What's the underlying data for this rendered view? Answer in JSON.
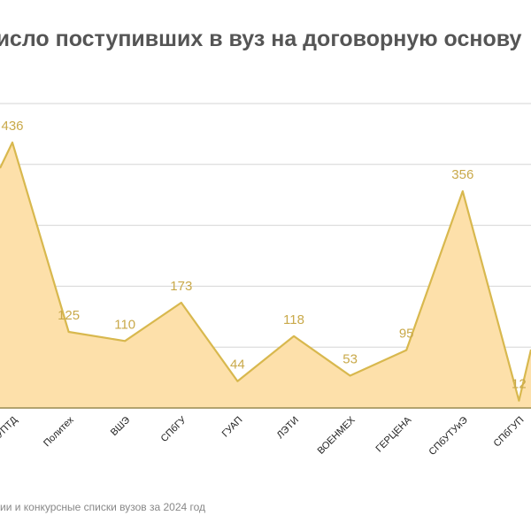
{
  "chart_data": {
    "type": "area",
    "title": "Число поступивших в вуз на договорную основу",
    "source": "ии и конкурсные списки вузов за 2024 год",
    "categories": [
      "СПбГУПТД",
      "Политех",
      "ВШЭ",
      "СПбГУ",
      "ГУАП",
      "ЛЭТИ",
      "ВОЕНМЕХ",
      "ГЕРЦЕНА",
      "СПбУТУиЭ",
      "СПбГУП"
    ],
    "values": [
      436,
      125,
      110,
      173,
      44,
      118,
      53,
      95,
      356,
      12
    ],
    "ylim": [
      0,
      500
    ],
    "gridlines": [
      0,
      100,
      200,
      300,
      400,
      500
    ],
    "grid": true,
    "colors": {
      "fill": "#fde0aa",
      "line": "#d8b84e",
      "label": "#c9a94a",
      "grid": "#d6d6d6",
      "axis": "#9a8a50"
    }
  }
}
